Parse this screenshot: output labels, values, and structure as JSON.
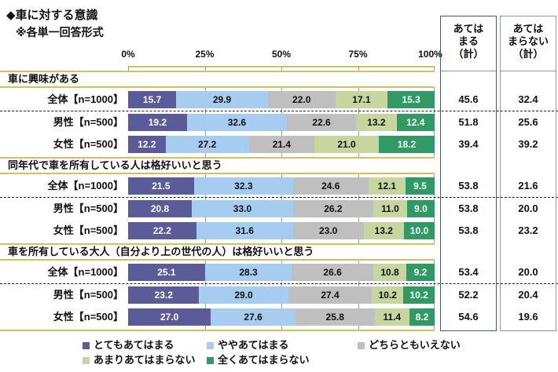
{
  "title": "◆車に対する意識",
  "subtitle": "※各単一回答形式",
  "axis": {
    "ticks": [
      "0%",
      "25%",
      "50%",
      "75%",
      "100%"
    ]
  },
  "summary_columns": [
    {
      "header": "あては\nまる\n（計）"
    },
    {
      "header": "あては\nまらない\n（計）"
    }
  ],
  "legend": [
    {
      "label": "とてもあてはまる",
      "color": "#5b5b99",
      "text_color": "#ffffff"
    },
    {
      "label": "ややあてはまる",
      "color": "#a6cdf0",
      "text_color": "#111111"
    },
    {
      "label": "どちらともいえない",
      "color": "#bfbfbf",
      "text_color": "#111111"
    },
    {
      "label": "あまりあてはまらない",
      "color": "#c6d69e",
      "text_color": "#111111"
    },
    {
      "label": "全くあてはまらない",
      "color": "#2f9a64",
      "text_color": "#ffffff"
    }
  ],
  "chart_data": {
    "type": "bar",
    "orientation": "horizontal_stacked",
    "title": "◆車に対する意識 ※各単一回答形式",
    "xlim": [
      0,
      100
    ],
    "x_tick_labels": [
      "0%",
      "25%",
      "50%",
      "75%",
      "100%"
    ],
    "series_names": [
      "とてもあてはまる",
      "ややあてはまる",
      "どちらともいえない",
      "あまりあてはまらない",
      "全くあてはまらない"
    ],
    "legend_position": "bottom",
    "summary_column_headers": [
      "あてはまる（計）",
      "あてはまらない（計）"
    ],
    "sections": [
      {
        "heading": "車に興味がある",
        "rows": [
          {
            "label": "全体【n=1000】",
            "values": [
              15.7,
              29.9,
              22.0,
              17.1,
              15.3
            ],
            "agree_total": 45.6,
            "disagree_total": 32.4
          },
          {
            "label": "男性【n=500】",
            "values": [
              19.2,
              32.6,
              22.6,
              13.2,
              12.4
            ],
            "agree_total": 51.8,
            "disagree_total": 25.6
          },
          {
            "label": "女性【n=500】",
            "values": [
              12.2,
              27.2,
              21.4,
              21.0,
              18.2
            ],
            "agree_total": 39.4,
            "disagree_total": 39.2
          }
        ]
      },
      {
        "heading": "同年代で車を所有している人は格好いいと思う",
        "rows": [
          {
            "label": "全体【n=1000】",
            "values": [
              21.5,
              32.3,
              24.6,
              12.1,
              9.5
            ],
            "agree_total": 53.8,
            "disagree_total": 21.6
          },
          {
            "label": "男性【n=500】",
            "values": [
              20.8,
              33.0,
              26.2,
              11.0,
              9.0
            ],
            "agree_total": 53.8,
            "disagree_total": 20.0
          },
          {
            "label": "女性【n=500】",
            "values": [
              22.2,
              31.6,
              23.0,
              13.2,
              10.0
            ],
            "agree_total": 53.8,
            "disagree_total": 23.2
          }
        ]
      },
      {
        "heading": "車を所有している大人（自分より上の世代の人）は格好いいと思う",
        "rows": [
          {
            "label": "全体【n=1000】",
            "values": [
              25.1,
              28.3,
              26.6,
              10.8,
              9.2
            ],
            "agree_total": 53.4,
            "disagree_total": 20.0
          },
          {
            "label": "男性【n=500】",
            "values": [
              23.2,
              29.0,
              27.4,
              10.2,
              10.2
            ],
            "agree_total": 52.2,
            "disagree_total": 20.4
          },
          {
            "label": "女性【n=500】",
            "values": [
              27.0,
              27.6,
              25.8,
              11.4,
              8.2
            ],
            "agree_total": 54.6,
            "disagree_total": 19.6
          }
        ]
      }
    ]
  }
}
